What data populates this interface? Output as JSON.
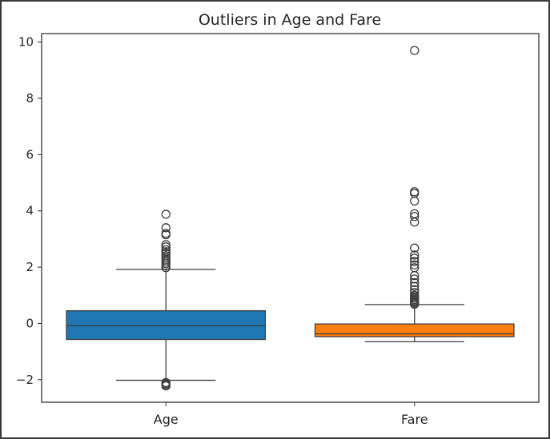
{
  "chart_data": {
    "type": "box",
    "title": "Outliers in Age and Fare",
    "xlabel": "",
    "ylabel": "",
    "ylim": [
      -2.8,
      10.3
    ],
    "yticks": [
      -2,
      0,
      2,
      4,
      6,
      8,
      10
    ],
    "ytick_labels": [
      "−2",
      "0",
      "2",
      "4",
      "6",
      "8",
      "10"
    ],
    "categories": [
      "Age",
      "Fare"
    ],
    "grid": false,
    "series": [
      {
        "category": "Age",
        "color": "#1f77b4",
        "whisker_low": -2.02,
        "q1": -0.57,
        "median": -0.08,
        "q3": 0.45,
        "whisker_high": 1.92,
        "outliers": [
          -2.22,
          -2.18,
          -2.14,
          -2.1,
          1.98,
          2.05,
          2.12,
          2.18,
          2.25,
          2.32,
          2.4,
          2.48,
          2.55,
          2.62,
          2.72,
          2.8,
          3.15,
          3.2,
          3.4,
          3.88
        ]
      },
      {
        "category": "Fare",
        "color": "#ff7f0e",
        "whisker_low": -0.65,
        "q1": -0.47,
        "median": -0.37,
        "q3": -0.02,
        "whisker_high": 0.67,
        "outliers": [
          0.68,
          0.72,
          0.76,
          0.8,
          0.85,
          0.9,
          0.95,
          1.0,
          1.1,
          1.2,
          1.32,
          1.45,
          1.58,
          1.7,
          1.98,
          2.08,
          2.2,
          2.32,
          2.43,
          2.68,
          3.6,
          3.8,
          3.9,
          4.35,
          4.62,
          4.68,
          9.7
        ]
      }
    ]
  }
}
